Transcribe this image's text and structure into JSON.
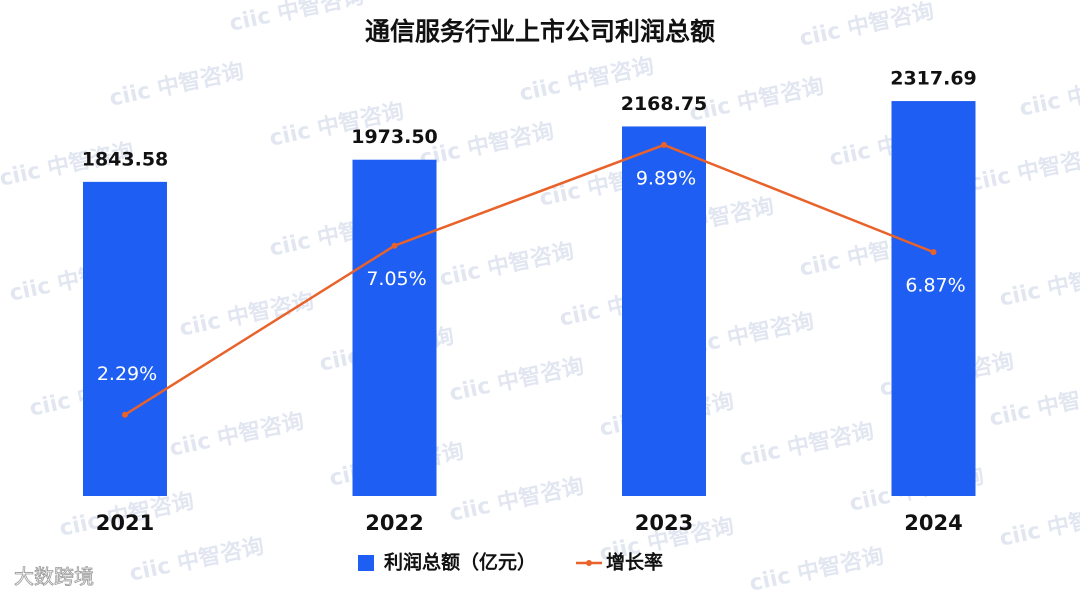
{
  "chart_data": {
    "type": "bar_line",
    "title": "通信服务行业上市公司利润总额",
    "categories": [
      "2021",
      "2022",
      "2023",
      "2024"
    ],
    "series": [
      {
        "name": "利润总额（亿元）",
        "type": "bar",
        "color": "#1f5ef2",
        "values": [
          1843.58,
          1973.5,
          2168.75,
          2317.69
        ],
        "value_labels": [
          "1843.58",
          "1973.50",
          "2168.75",
          "2317.69"
        ]
      },
      {
        "name": "增长率",
        "type": "line",
        "axis": "y2",
        "color": "#e8622a",
        "values": [
          2.29,
          7.05,
          9.89,
          6.87
        ],
        "value_labels": [
          "2.29%",
          "7.05%",
          "9.89%",
          "6.87%"
        ]
      }
    ],
    "ylim": [
      0,
      2500
    ],
    "y2lim": [
      0,
      12
    ],
    "legend": "bottom",
    "watermark": "ciic 中智咨询",
    "source_logo": "大数跨境"
  }
}
